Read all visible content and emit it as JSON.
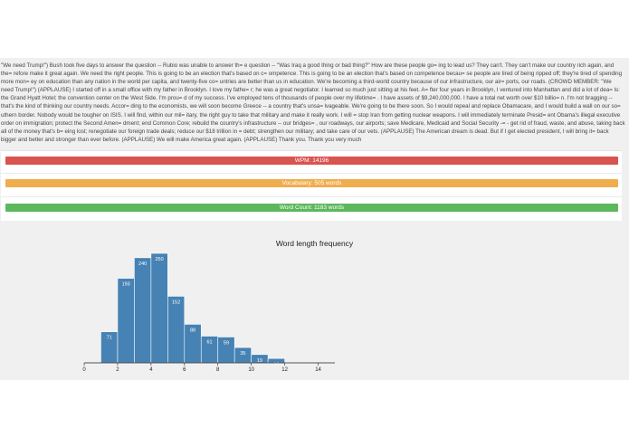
{
  "speech_text": "\"We need Trump!\") Bush took five days to answer the question -- Rubio was unable to answer th= e question -- \"Was Iraq a good thing or bad thing?\" How are these people go= ing to lead us? They can't. They can't make our country rich again, and the= refore make it great again. We need the right people. This is going to be an election that's based on c= ompetence. This is going to be an election that's based on competence becau= se people are tired of being ripped off; they're tired of spending more mon= ey on education than any nation in the world per capita, and twenty-five co= untries are better than us in education. We're becoming a third-world country because of our infrastructure, our air= ports, our roads. (CROWD MEMBER: \"We need Trump!\") (APPLAUSE) I started off in a small office with my father in Brooklyn. I love my fathe= r; he was a great negotiator. I learned so much just sitting at his feet. A= fter four years in Brooklyn, I ventured into Manhattan and did a lot of dea= ls: the Grand Hyatt Hotel; the convention center on the West Side. I'm prou= d of my success. I've employed tens of thousands of people over my lifetime= . I have assets of $9,240,000,000. I have a total net worth over $10 billio= n. I'm not bragging -- that's the kind of thinking our country needs. Accor= ding to the economists, we will soon become Greece -- a country that's unsa= lvageable. We're going to be there soon. So I would repeal and replace Obamacare, and I would build a wall on our so= uthern border. Nobody would be tougher on ISIS. I will find, within our mil= itary, the right guy to take that military and make it really work. I will = stop Iran from getting nuclear weapons. I will immediately terminate Presid= ent Obama's illegal executive order on immigration; protect the Second Amen= dment; end Common Core; rebuild the country's infrastructure -- our bridges= , our roadways, our airports; save Medicare, Medicaid and Social Security -= - get rid of fraud, waste, and abuse, taking back all of the money that's b= eing lost; renegotiate our foreign trade deals; reduce our $18 trillion in = debt; strengthen our military; and take care of our vets. (APPLAUSE) The American dream is dead. But if I get elected president, I will bring it= back bigger and better and stronger than ever before. (APPLAUSE) We will make America great again. (APPLAUSE) Thank you. Thank you very much",
  "stats": {
    "wpm": "WPM: 14196",
    "vocabulary": "Vocabulary: 505 words",
    "word_count": "Word Count: 1183 words",
    "colors": {
      "wpm": "#d9534f",
      "vocabulary": "#f0ad4e",
      "word_count": "#5cb85c"
    }
  },
  "chart_data": {
    "type": "bar",
    "title": "Word length frequency",
    "bins": [
      [
        1,
        2
      ],
      [
        2,
        3
      ],
      [
        3,
        4
      ],
      [
        4,
        5
      ],
      [
        5,
        6
      ],
      [
        6,
        7
      ],
      [
        7,
        8
      ],
      [
        8,
        9
      ],
      [
        9,
        10
      ],
      [
        10,
        11
      ],
      [
        11,
        12
      ]
    ],
    "values": [
      71,
      193,
      240,
      250,
      152,
      88,
      61,
      59,
      35,
      19,
      10
    ],
    "xlim": [
      0,
      15
    ],
    "xticks": [
      "0",
      "2",
      "4",
      "6",
      "8",
      "10",
      "12",
      "14"
    ],
    "color": "#4682b4",
    "grid": false
  }
}
